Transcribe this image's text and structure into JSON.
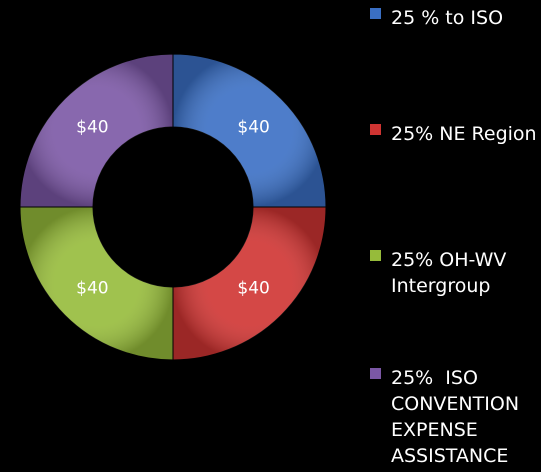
{
  "chart_data": {
    "type": "pie",
    "subtype": "donut",
    "background_color": "#000000",
    "categories": [
      "25 % to ISO",
      "25% NE Region",
      "25% OH-WV Intergroup",
      "25%  ISO CONVENTION EXPENSE ASSISTANCE"
    ],
    "values": [
      40,
      40,
      40,
      40
    ],
    "data_labels": [
      "$40",
      "$40",
      "$40",
      "$40"
    ],
    "colors": [
      "#3a6fc4",
      "#cf3432",
      "#96bb3a",
      "#7b57a5"
    ],
    "legend": {
      "placement": "right",
      "entries": [
        {
          "lines": [
            "25 % to ISO"
          ]
        },
        {
          "lines": [
            "25% NE Region"
          ]
        },
        {
          "lines": [
            "25% OH-WV",
            "Intergroup"
          ]
        },
        {
          "lines": [
            "25%  ISO",
            "CONVENTION",
            "EXPENSE",
            "ASSISTANCE"
          ]
        }
      ]
    }
  }
}
